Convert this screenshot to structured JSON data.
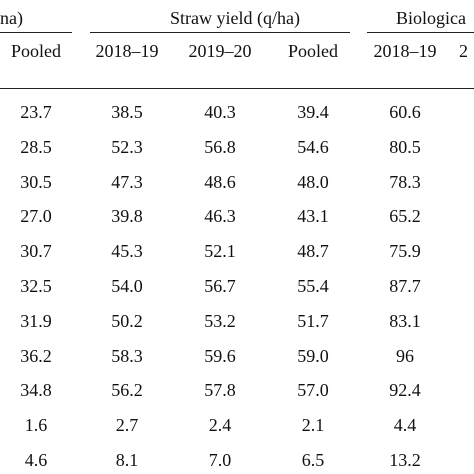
{
  "header": {
    "grain_group_tail": "na)",
    "straw_group": "Straw yield (q/ha)",
    "bio_group": "Biologica",
    "grain_pooled": "Pooled",
    "straw_y1": "2018–19",
    "straw_y2": "2019–20",
    "straw_pooled": "Pooled",
    "bio_y1": "2018–19",
    "bio_y2_partial": "2"
  },
  "rows": [
    [
      "23.7",
      "38.5",
      "40.3",
      "39.4",
      "60.6"
    ],
    [
      "28.5",
      "52.3",
      "56.8",
      "54.6",
      "80.5"
    ],
    [
      "30.5",
      "47.3",
      "48.6",
      "48.0",
      "78.3"
    ],
    [
      "27.0",
      "39.8",
      "46.3",
      "43.1",
      "65.2"
    ],
    [
      "30.7",
      "45.3",
      "52.1",
      "48.7",
      "75.9"
    ],
    [
      "32.5",
      "54.0",
      "56.7",
      "55.4",
      "87.7"
    ],
    [
      "31.9",
      "50.2",
      "53.2",
      "51.7",
      "83.1"
    ],
    [
      "36.2",
      "58.3",
      "59.6",
      "59.0",
      "96"
    ],
    [
      "34.8",
      "56.2",
      "57.8",
      "57.0",
      "92.4"
    ],
    [
      "1.6",
      "2.7",
      "2.4",
      "2.1",
      "4.4"
    ],
    [
      "4.6",
      "8.1",
      "7.0",
      "6.5",
      "13.2"
    ]
  ]
}
